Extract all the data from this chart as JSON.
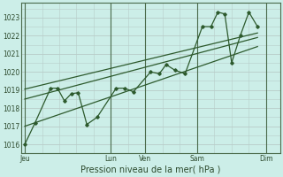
{
  "background_color": "#cceee8",
  "grid_color": "#b8ccc8",
  "line_color": "#2d5a2d",
  "xlabel": "Pression niveau de la mer( hPa )",
  "ylim": [
    1015.5,
    1023.8
  ],
  "yticks": [
    1016,
    1017,
    1018,
    1019,
    1020,
    1021,
    1022,
    1023
  ],
  "xtick_labels": [
    "Jeu",
    "Lun",
    "Ven",
    "Sam",
    "Dim"
  ],
  "xtick_positions": [
    0,
    5,
    7,
    10,
    14
  ],
  "vline_positions": [
    0,
    5,
    7,
    10,
    14
  ],
  "xlim": [
    -0.2,
    14.8
  ],
  "data_line": [
    [
      0.0,
      1016.0
    ],
    [
      0.6,
      1017.2
    ],
    [
      1.5,
      1019.1
    ],
    [
      1.9,
      1019.1
    ],
    [
      2.3,
      1018.4
    ],
    [
      2.7,
      1018.8
    ],
    [
      3.1,
      1018.85
    ],
    [
      3.6,
      1017.1
    ],
    [
      4.2,
      1017.5
    ],
    [
      5.3,
      1019.1
    ],
    [
      5.8,
      1019.1
    ],
    [
      6.3,
      1018.9
    ],
    [
      7.3,
      1020.0
    ],
    [
      7.8,
      1019.9
    ],
    [
      8.2,
      1020.4
    ],
    [
      8.7,
      1020.1
    ],
    [
      9.3,
      1019.9
    ],
    [
      10.3,
      1022.5
    ],
    [
      10.8,
      1022.5
    ],
    [
      11.2,
      1023.3
    ],
    [
      11.6,
      1023.2
    ],
    [
      12.0,
      1020.5
    ],
    [
      12.5,
      1022.0
    ],
    [
      13.0,
      1023.3
    ],
    [
      13.5,
      1022.5
    ]
  ],
  "trend_line1": [
    [
      0.0,
      1019.05
    ],
    [
      13.5,
      1022.15
    ]
  ],
  "trend_line2": [
    [
      0.0,
      1018.5
    ],
    [
      13.5,
      1021.9
    ]
  ],
  "trend_line3": [
    [
      0.0,
      1017.0
    ],
    [
      13.5,
      1021.4
    ]
  ]
}
